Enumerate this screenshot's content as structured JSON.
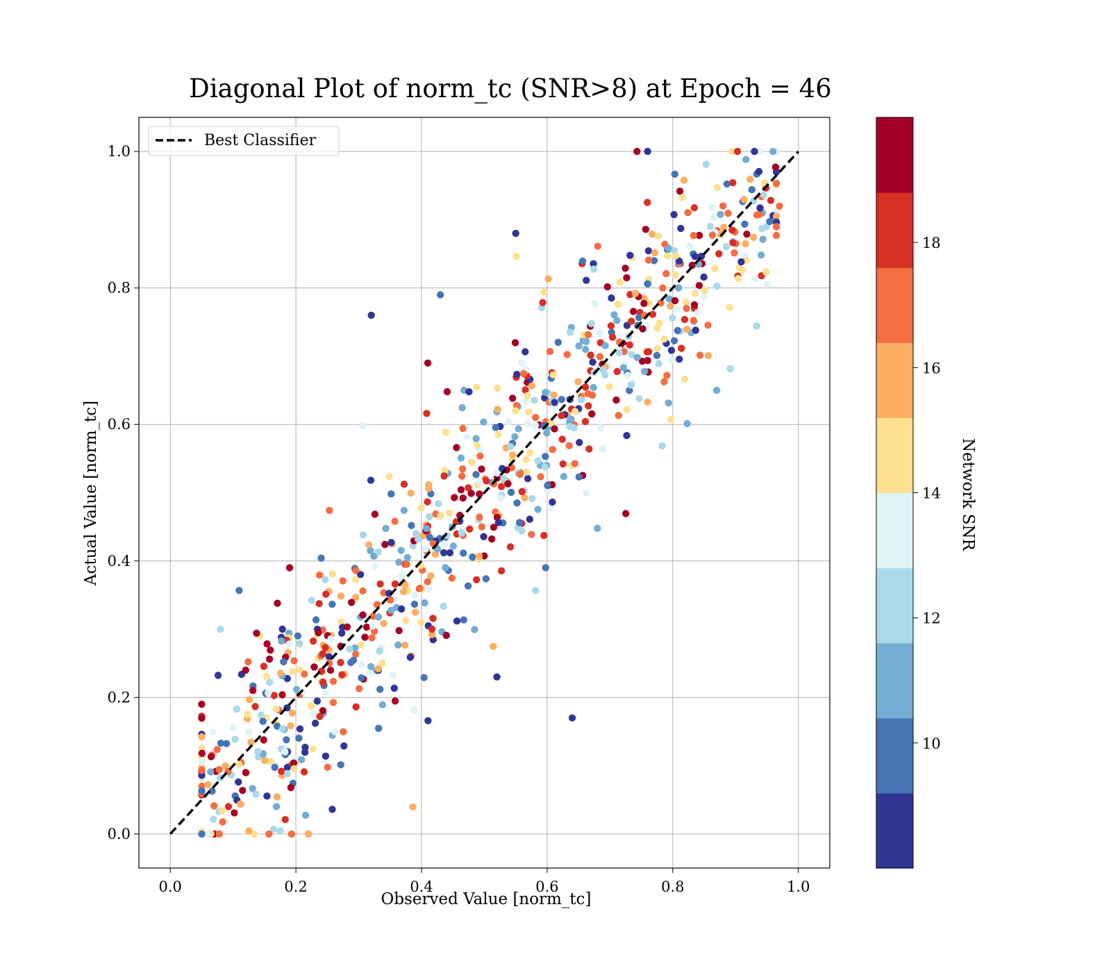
{
  "chart_data": {
    "type": "scatter",
    "title": "Diagonal Plot of norm_tc (SNR>8) at Epoch = 46",
    "xlabel": "Observed Value [norm_tc]",
    "ylabel": "Actual Value [norm_tc]",
    "xlim": [
      -0.05,
      1.05
    ],
    "ylim": [
      -0.05,
      1.05
    ],
    "xticks": [
      "0.0",
      "0.2",
      "0.4",
      "0.6",
      "0.8",
      "1.0"
    ],
    "yticks": [
      "0.0",
      "0.2",
      "0.4",
      "0.6",
      "0.8",
      "1.0"
    ],
    "grid": true,
    "legend": {
      "position": "upper-left",
      "entries": [
        "Best Classifier"
      ]
    },
    "reference_line": {
      "name": "Best Classifier",
      "x": [
        0,
        1
      ],
      "y": [
        0,
        1
      ],
      "style": "dashed",
      "color": "#000000"
    },
    "colorbar": {
      "label": "Network SNR",
      "range": [
        8,
        20
      ],
      "ticks": [
        "10",
        "12",
        "14",
        "16",
        "18"
      ],
      "colors": [
        "#313695",
        "#4575b4",
        "#74add1",
        "#abd9e9",
        "#e0f3f8",
        "#fee090",
        "#fdae61",
        "#f46d43",
        "#d73027",
        "#a50026"
      ]
    },
    "points": {
      "count": 900,
      "trend": "clustered along y = x, spread about ±0.1 with outliers",
      "color_by": "Network SNR (8–20)",
      "sample": [
        {
          "x": 0.05,
          "y": 0.17,
          "snr": 19.5
        },
        {
          "x": 0.08,
          "y": 0.3,
          "snr": 12.5
        },
        {
          "x": 0.12,
          "y": 0.24,
          "snr": 19.0
        },
        {
          "x": 0.19,
          "y": 0.39,
          "snr": 19.0
        },
        {
          "x": 0.32,
          "y": 0.76,
          "snr": 8.5
        },
        {
          "x": 0.41,
          "y": 0.69,
          "snr": 19.5
        },
        {
          "x": 0.43,
          "y": 0.79,
          "snr": 9.5
        },
        {
          "x": 0.55,
          "y": 0.88,
          "snr": 8.5
        },
        {
          "x": 0.64,
          "y": 0.17,
          "snr": 8.5
        },
        {
          "x": 0.52,
          "y": 0.23,
          "snr": 8.5
        },
        {
          "x": 0.76,
          "y": 1.0,
          "snr": 8.5
        },
        {
          "x": 0.93,
          "y": 1.0,
          "snr": 8.5
        },
        {
          "x": 0.97,
          "y": 0.92,
          "snr": 17.0
        },
        {
          "x": 0.87,
          "y": 0.65,
          "snr": 11.0
        },
        {
          "x": 0.22,
          "y": 0.0,
          "snr": 16.0
        }
      ]
    }
  }
}
